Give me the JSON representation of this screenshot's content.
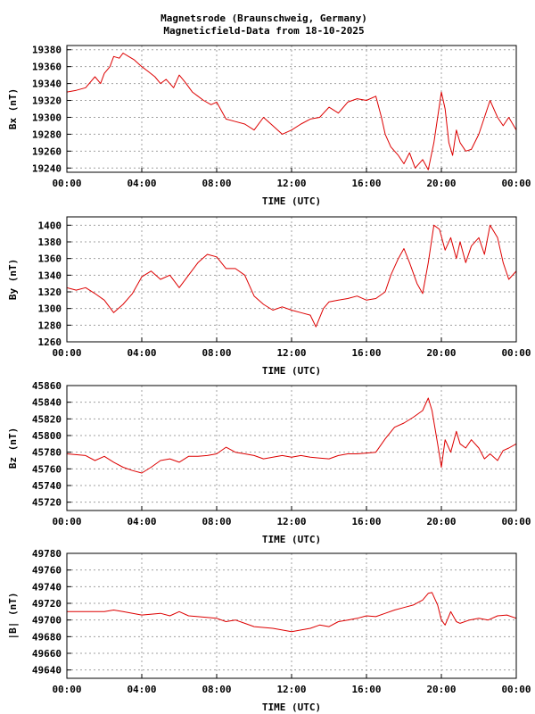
{
  "title_line1": "Magnetsrode (Braunschweig, Germany)",
  "title_line2": "Magneticfield-Data from 18-10-2025",
  "line_color": "#dd0000",
  "chart_data": [
    {
      "type": "line",
      "ylabel": "Bx (nT)",
      "xlabel": "TIME (UTC)",
      "x_ticks": [
        "00:00",
        "04:00",
        "08:00",
        "12:00",
        "16:00",
        "20:00",
        "00:00"
      ],
      "xlim": [
        0,
        24
      ],
      "ylim": [
        19235,
        19385
      ],
      "y_ticks": [
        19240,
        19260,
        19280,
        19300,
        19320,
        19340,
        19360,
        19380
      ],
      "x": [
        0,
        0.5,
        1,
        1.5,
        1.8,
        2,
        2.3,
        2.5,
        2.8,
        3,
        3.3,
        3.6,
        4,
        4.3,
        4.7,
        5,
        5.3,
        5.7,
        6,
        6.3,
        6.7,
        7,
        7.3,
        7.7,
        8,
        8.2,
        8.5,
        9,
        9.5,
        10,
        10.5,
        11,
        11.5,
        12,
        12.5,
        13,
        13.5,
        14,
        14.5,
        15,
        15.5,
        16,
        16.5,
        16.8,
        17,
        17.3,
        17.7,
        18,
        18.3,
        18.6,
        19,
        19.3,
        19.6,
        19.8,
        20,
        20.2,
        20.4,
        20.6,
        20.8,
        21,
        21.3,
        21.6,
        22,
        22.3,
        22.6,
        23,
        23.3,
        23.6,
        24
      ],
      "values": [
        19330,
        19332,
        19335,
        19348,
        19340,
        19352,
        19360,
        19372,
        19370,
        19376,
        19372,
        19368,
        19360,
        19355,
        19348,
        19340,
        19345,
        19335,
        19350,
        19342,
        19330,
        19325,
        19320,
        19315,
        19318,
        19310,
        19298,
        19295,
        19292,
        19285,
        19300,
        19290,
        19280,
        19285,
        19292,
        19298,
        19300,
        19312,
        19305,
        19318,
        19322,
        19320,
        19325,
        19300,
        19280,
        19265,
        19255,
        19245,
        19258,
        19240,
        19250,
        19238,
        19270,
        19300,
        19330,
        19310,
        19270,
        19255,
        19285,
        19270,
        19260,
        19262,
        19280,
        19300,
        19320,
        19300,
        19290,
        19300,
        19285
      ]
    },
    {
      "type": "line",
      "ylabel": "By (nT)",
      "xlabel": "TIME (UTC)",
      "x_ticks": [
        "00:00",
        "04:00",
        "08:00",
        "12:00",
        "16:00",
        "20:00",
        "00:00"
      ],
      "xlim": [
        0,
        24
      ],
      "ylim": [
        1260,
        1410
      ],
      "y_ticks": [
        1260,
        1280,
        1300,
        1320,
        1340,
        1360,
        1380,
        1400
      ],
      "x": [
        0,
        0.5,
        1,
        1.5,
        2,
        2.5,
        3,
        3.5,
        4,
        4.5,
        5,
        5.5,
        6,
        6.5,
        7,
        7.5,
        8,
        8.5,
        9,
        9.5,
        10,
        10.5,
        11,
        11.5,
        12,
        12.5,
        13,
        13.3,
        13.7,
        14,
        14.5,
        15,
        15.5,
        16,
        16.5,
        17,
        17.3,
        17.7,
        18,
        18.3,
        18.7,
        19,
        19.3,
        19.6,
        19.9,
        20.2,
        20.5,
        20.8,
        21,
        21.3,
        21.6,
        22,
        22.3,
        22.6,
        23,
        23.3,
        23.6,
        24
      ],
      "values": [
        1325,
        1322,
        1325,
        1318,
        1310,
        1295,
        1305,
        1318,
        1338,
        1345,
        1335,
        1340,
        1325,
        1340,
        1355,
        1365,
        1362,
        1348,
        1348,
        1340,
        1315,
        1305,
        1298,
        1302,
        1298,
        1295,
        1292,
        1278,
        1300,
        1308,
        1310,
        1312,
        1315,
        1310,
        1312,
        1320,
        1340,
        1360,
        1372,
        1355,
        1330,
        1318,
        1355,
        1400,
        1395,
        1370,
        1385,
        1360,
        1380,
        1355,
        1375,
        1385,
        1365,
        1400,
        1385,
        1355,
        1335,
        1345
      ]
    },
    {
      "type": "line",
      "ylabel": "Bz (nT)",
      "xlabel": "TIME (UTC)",
      "x_ticks": [
        "00:00",
        "04:00",
        "08:00",
        "12:00",
        "16:00",
        "20:00",
        "00:00"
      ],
      "xlim": [
        0,
        24
      ],
      "ylim": [
        45710,
        45860
      ],
      "y_ticks": [
        45720,
        45740,
        45760,
        45780,
        45800,
        45820,
        45840,
        45860
      ],
      "x": [
        0,
        1,
        1.5,
        2,
        2.5,
        3,
        3.5,
        4,
        4.5,
        5,
        5.5,
        6,
        6.5,
        7,
        7.5,
        8,
        8.5,
        9,
        9.5,
        10,
        10.5,
        11,
        11.5,
        12,
        12.5,
        13,
        13.5,
        14,
        14.5,
        15,
        15.5,
        16,
        16.5,
        17,
        17.5,
        18,
        18.5,
        19,
        19.3,
        19.5,
        19.8,
        20,
        20.2,
        20.5,
        20.8,
        21,
        21.3,
        21.6,
        22,
        22.3,
        22.6,
        23,
        23.3,
        23.6,
        24
      ],
      "values": [
        45778,
        45776,
        45770,
        45775,
        45768,
        45762,
        45758,
        45755,
        45762,
        45770,
        45772,
        45768,
        45775,
        45775,
        45776,
        45778,
        45786,
        45780,
        45778,
        45776,
        45772,
        45774,
        45776,
        45774,
        45776,
        45774,
        45773,
        45772,
        45776,
        45778,
        45778,
        45779,
        45780,
        45796,
        45810,
        45815,
        45822,
        45830,
        45845,
        45830,
        45790,
        45762,
        45795,
        45780,
        45805,
        45790,
        45785,
        45795,
        45785,
        45772,
        45778,
        45770,
        45782,
        45785,
        45790
      ]
    },
    {
      "type": "line",
      "ylabel": "|B| (nT)",
      "xlabel": "TIME (UTC)",
      "x_ticks": [
        "00:00",
        "04:00",
        "08:00",
        "12:00",
        "16:00",
        "20:00",
        "00:00"
      ],
      "xlim": [
        0,
        24
      ],
      "ylim": [
        49630,
        49780
      ],
      "y_ticks": [
        49640,
        49660,
        49680,
        49700,
        49720,
        49740,
        49760,
        49780
      ],
      "x": [
        0,
        1,
        2,
        2.5,
        3,
        4,
        5,
        5.5,
        6,
        6.5,
        7,
        8,
        8.5,
        9,
        9.5,
        10,
        11,
        11.5,
        12,
        13,
        13.5,
        14,
        14.5,
        15,
        15.5,
        16,
        16.5,
        17,
        17.5,
        18,
        18.5,
        19,
        19.3,
        19.5,
        19.8,
        20,
        20.2,
        20.5,
        20.8,
        21,
        21.5,
        22,
        22.5,
        23,
        23.5,
        24
      ],
      "values": [
        49710,
        49710,
        49710,
        49712,
        49710,
        49706,
        49708,
        49705,
        49710,
        49705,
        49704,
        49702,
        49698,
        49700,
        49696,
        49692,
        49690,
        49688,
        49686,
        49690,
        49694,
        49692,
        49698,
        49700,
        49702,
        49705,
        49704,
        49708,
        49712,
        49715,
        49718,
        49724,
        49732,
        49733,
        49718,
        49700,
        49694,
        49710,
        49698,
        49696,
        49700,
        49702,
        49700,
        49705,
        49706,
        49702
      ]
    }
  ]
}
